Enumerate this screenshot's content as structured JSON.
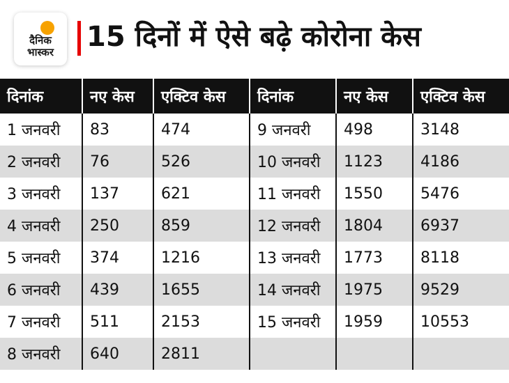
{
  "logo": {
    "line1": "दैनिक",
    "line2": "भास्कर"
  },
  "title": "15 दिनों में ऐसे बढ़े कोरोना केस",
  "table": {
    "headers": [
      "दिनांक",
      "नए केस",
      "एक्टिव केस",
      "दिनांक",
      "नए केस",
      "एक्टिव केस"
    ],
    "rows": [
      [
        "1 जनवरी",
        "83",
        "474",
        "9 जनवरी",
        "498",
        "3148"
      ],
      [
        "2 जनवरी",
        "76",
        "526",
        "10 जनवरी",
        "1123",
        "4186"
      ],
      [
        "3 जनवरी",
        "137",
        "621",
        "11 जनवरी",
        "1550",
        "5476"
      ],
      [
        "4 जनवरी",
        "250",
        "859",
        "12 जनवरी",
        "1804",
        "6937"
      ],
      [
        "5 जनवरी",
        "374",
        "1216",
        "13 जनवरी",
        "1773",
        "8118"
      ],
      [
        "6 जनवरी",
        "439",
        "1655",
        "14 जनवरी",
        "1975",
        "9529"
      ],
      [
        "7 जनवरी",
        "511",
        "2153",
        "15 जनवरी",
        "1959",
        "10553"
      ],
      [
        "8 जनवरी",
        "640",
        "2811",
        "",
        "",
        ""
      ]
    ]
  }
}
